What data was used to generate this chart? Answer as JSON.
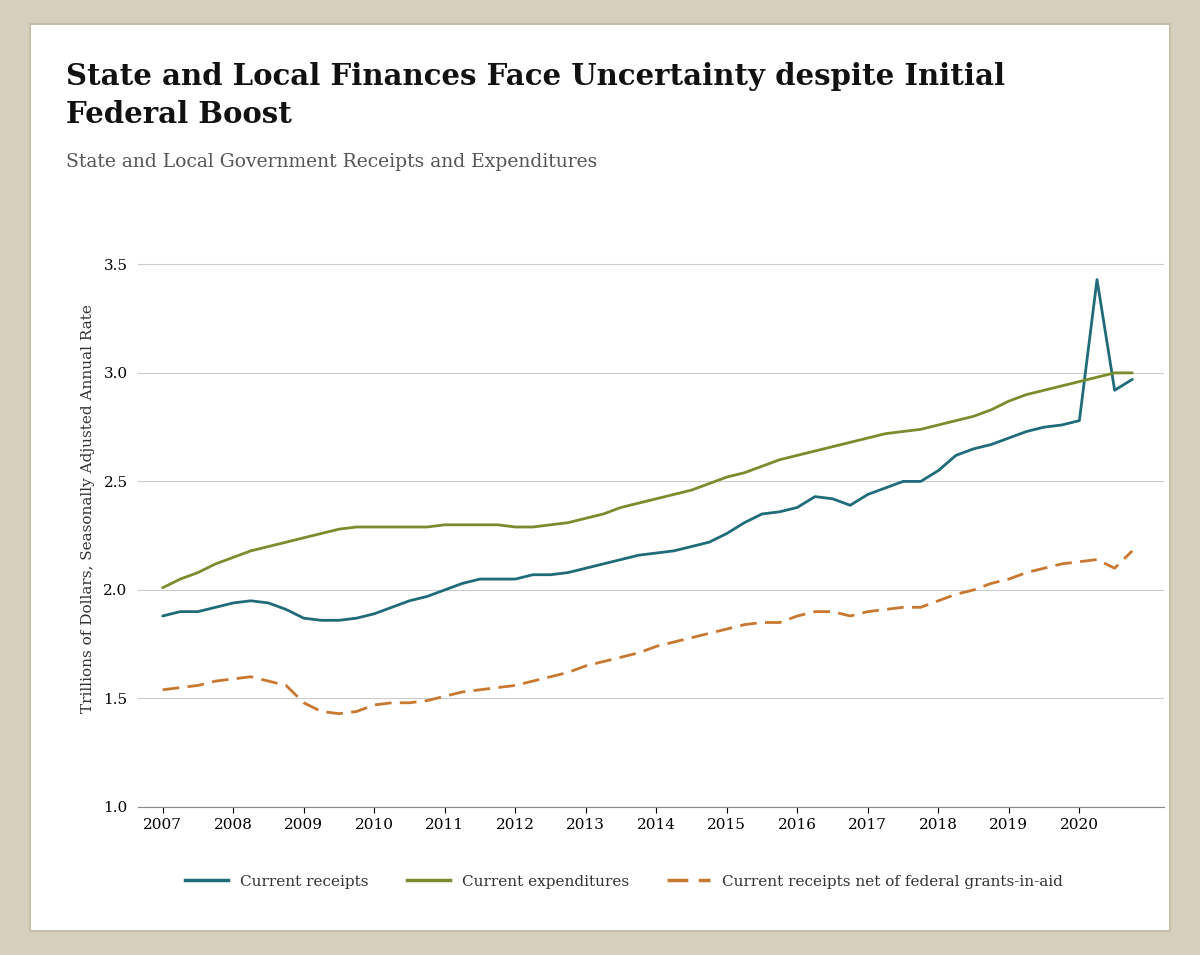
{
  "title_line1": "State and Local Finances Face Uncertainty despite Initial",
  "title_line2": "Federal Boost",
  "subtitle": "State and Local Government Receipts and Expenditures",
  "ylabel": "Trillions of Dollars, Seasonally Adjusted Annual Rate",
  "ylim": [
    1.0,
    3.75
  ],
  "yticks": [
    1.0,
    1.5,
    2.0,
    2.5,
    3.0,
    3.5
  ],
  "outer_bg_color": "#d6cfbe",
  "inner_bg_color": "#ffffff",
  "border_color": "#c8bfa8",
  "current_receipts_color": "#1f6b7a",
  "current_expenditures_color": "#7a8c2e",
  "net_receipts_color": "#c87830",
  "x_labels": [
    "2007",
    "2008",
    "2009",
    "2010",
    "2011",
    "2012",
    "2013",
    "2014",
    "2015",
    "2016",
    "2017",
    "2018",
    "2019",
    "2020"
  ],
  "receipts_x": [
    2007.0,
    2007.25,
    2007.5,
    2007.75,
    2008.0,
    2008.25,
    2008.5,
    2008.75,
    2009.0,
    2009.25,
    2009.5,
    2009.75,
    2010.0,
    2010.25,
    2010.5,
    2010.75,
    2011.0,
    2011.25,
    2011.5,
    2011.75,
    2012.0,
    2012.25,
    2012.5,
    2012.75,
    2013.0,
    2013.25,
    2013.5,
    2013.75,
    2014.0,
    2014.25,
    2014.5,
    2014.75,
    2015.0,
    2015.25,
    2015.5,
    2015.75,
    2016.0,
    2016.25,
    2016.5,
    2016.75,
    2017.0,
    2017.25,
    2017.5,
    2017.75,
    2018.0,
    2018.25,
    2018.5,
    2018.75,
    2019.0,
    2019.25,
    2019.5,
    2019.75,
    2020.0,
    2020.25,
    2020.5,
    2020.75
  ],
  "receipts_y": [
    1.88,
    1.9,
    1.9,
    1.92,
    1.94,
    1.95,
    1.94,
    1.91,
    1.87,
    1.86,
    1.86,
    1.87,
    1.89,
    1.92,
    1.95,
    1.97,
    2.0,
    2.03,
    2.05,
    2.05,
    2.05,
    2.07,
    2.07,
    2.08,
    2.1,
    2.12,
    2.14,
    2.16,
    2.17,
    2.18,
    2.2,
    2.22,
    2.26,
    2.31,
    2.35,
    2.36,
    2.38,
    2.43,
    2.42,
    2.39,
    2.44,
    2.47,
    2.5,
    2.5,
    2.55,
    2.62,
    2.65,
    2.67,
    2.7,
    2.73,
    2.75,
    2.76,
    2.78,
    3.43,
    2.92,
    2.97
  ],
  "expenditures_x": [
    2007.0,
    2007.25,
    2007.5,
    2007.75,
    2008.0,
    2008.25,
    2008.5,
    2008.75,
    2009.0,
    2009.25,
    2009.5,
    2009.75,
    2010.0,
    2010.25,
    2010.5,
    2010.75,
    2011.0,
    2011.25,
    2011.5,
    2011.75,
    2012.0,
    2012.25,
    2012.5,
    2012.75,
    2013.0,
    2013.25,
    2013.5,
    2013.75,
    2014.0,
    2014.25,
    2014.5,
    2014.75,
    2015.0,
    2015.25,
    2015.5,
    2015.75,
    2016.0,
    2016.25,
    2016.5,
    2016.75,
    2017.0,
    2017.25,
    2017.5,
    2017.75,
    2018.0,
    2018.25,
    2018.5,
    2018.75,
    2019.0,
    2019.25,
    2019.5,
    2019.75,
    2020.0,
    2020.25,
    2020.5,
    2020.75
  ],
  "expenditures_y": [
    2.01,
    2.05,
    2.08,
    2.12,
    2.15,
    2.18,
    2.2,
    2.22,
    2.24,
    2.26,
    2.28,
    2.29,
    2.29,
    2.29,
    2.29,
    2.29,
    2.3,
    2.3,
    2.3,
    2.3,
    2.29,
    2.29,
    2.3,
    2.31,
    2.33,
    2.35,
    2.38,
    2.4,
    2.42,
    2.44,
    2.46,
    2.49,
    2.52,
    2.54,
    2.57,
    2.6,
    2.62,
    2.64,
    2.66,
    2.68,
    2.7,
    2.72,
    2.73,
    2.74,
    2.76,
    2.78,
    2.8,
    2.83,
    2.87,
    2.9,
    2.92,
    2.94,
    2.96,
    2.98,
    3.0,
    3.0
  ],
  "net_receipts_x": [
    2007.0,
    2007.25,
    2007.5,
    2007.75,
    2008.0,
    2008.25,
    2008.5,
    2008.75,
    2009.0,
    2009.25,
    2009.5,
    2009.75,
    2010.0,
    2010.25,
    2010.5,
    2010.75,
    2011.0,
    2011.25,
    2011.5,
    2011.75,
    2012.0,
    2012.25,
    2012.5,
    2012.75,
    2013.0,
    2013.25,
    2013.5,
    2013.75,
    2014.0,
    2014.25,
    2014.5,
    2014.75,
    2015.0,
    2015.25,
    2015.5,
    2015.75,
    2016.0,
    2016.25,
    2016.5,
    2016.75,
    2017.0,
    2017.25,
    2017.5,
    2017.75,
    2018.0,
    2018.25,
    2018.5,
    2018.75,
    2019.0,
    2019.25,
    2019.5,
    2019.75,
    2020.0,
    2020.25,
    2020.5,
    2020.75
  ],
  "net_receipts_y": [
    1.54,
    1.55,
    1.56,
    1.58,
    1.59,
    1.6,
    1.58,
    1.56,
    1.48,
    1.44,
    1.43,
    1.44,
    1.47,
    1.48,
    1.48,
    1.49,
    1.51,
    1.53,
    1.54,
    1.55,
    1.56,
    1.58,
    1.6,
    1.62,
    1.65,
    1.67,
    1.69,
    1.71,
    1.74,
    1.76,
    1.78,
    1.8,
    1.82,
    1.84,
    1.85,
    1.85,
    1.88,
    1.9,
    1.9,
    1.88,
    1.9,
    1.91,
    1.92,
    1.92,
    1.95,
    1.98,
    2.0,
    2.03,
    2.05,
    2.08,
    2.1,
    2.12,
    2.13,
    2.14,
    2.1,
    2.18
  ],
  "legend_labels": [
    "Current receipts",
    "Current expenditures",
    "Current receipts net of federal grants-in-aid"
  ]
}
